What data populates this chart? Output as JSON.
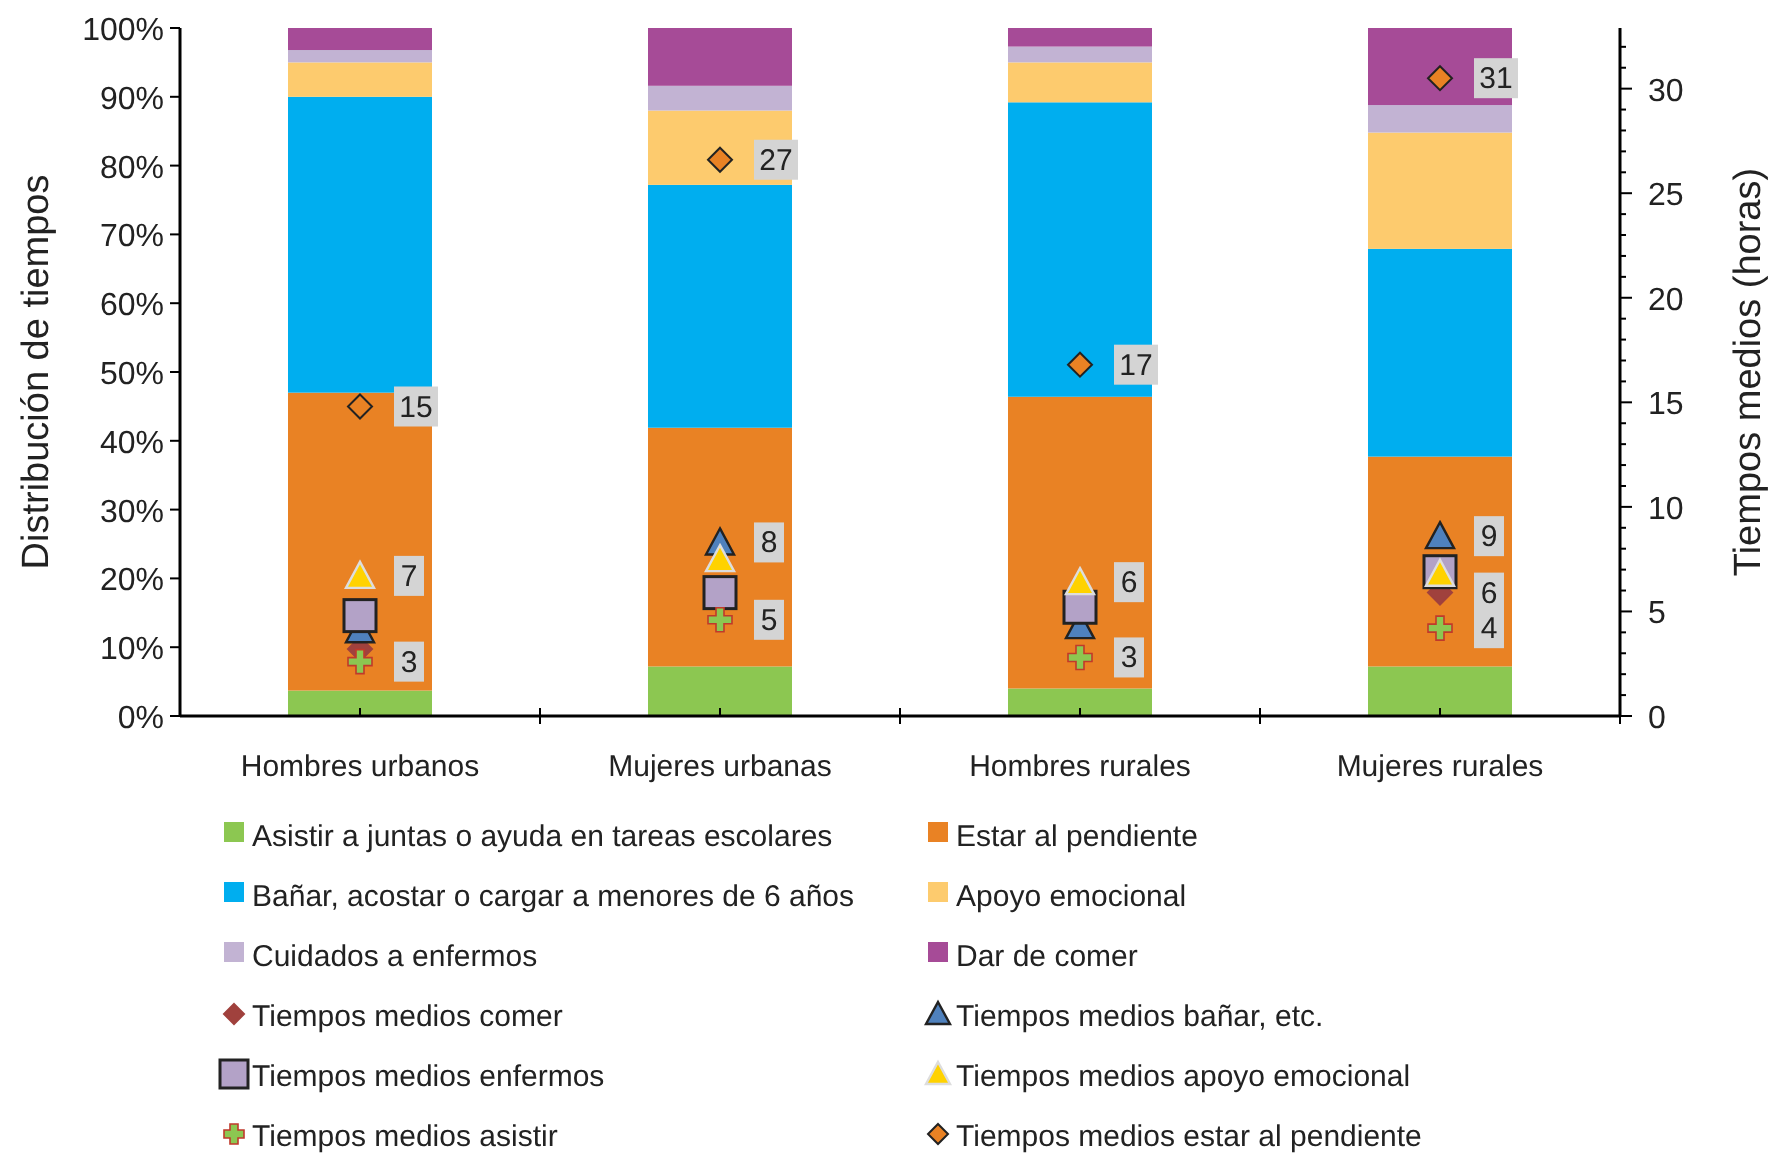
{
  "chart_data": {
    "type": "bar",
    "stacked": true,
    "categories": [
      "Hombres urbanos",
      "Mujeres urbanas",
      "Hombres rurales",
      "Mujeres rurales"
    ],
    "ylabel": "Distribución de tiempos",
    "y2label": "Tiempos medios (horas)",
    "ylim": [
      0,
      100
    ],
    "yticks": [
      {
        "value": 0,
        "label": "0%"
      },
      {
        "value": 10,
        "label": "10%"
      },
      {
        "value": 20,
        "label": "20%"
      },
      {
        "value": 30,
        "label": "30%"
      },
      {
        "value": 40,
        "label": "40%"
      },
      {
        "value": 50,
        "label": "50%"
      },
      {
        "value": 60,
        "label": "60%"
      },
      {
        "value": 70,
        "label": "70%"
      },
      {
        "value": 80,
        "label": "80%"
      },
      {
        "value": 90,
        "label": "90%"
      },
      {
        "value": 100,
        "label": "100%"
      }
    ],
    "y2lim": [
      0,
      32.9
    ],
    "y2ticks": [
      0,
      {
        "value": 1,
        "label": null
      },
      {
        "value": 2,
        "label": null
      },
      {
        "value": 3,
        "label": null
      },
      {
        "value": 4,
        "label": null
      },
      5,
      {
        "value": 6,
        "label": null
      },
      {
        "value": 7,
        "label": null
      },
      {
        "value": 8,
        "label": null
      },
      {
        "value": 9,
        "label": null
      },
      10,
      {
        "value": 11,
        "label": null
      },
      {
        "value": 12,
        "label": null
      },
      {
        "value": 13,
        "label": null
      },
      {
        "value": 14,
        "label": null
      },
      15,
      {
        "value": 16,
        "label": null
      },
      {
        "value": 17,
        "label": null
      },
      {
        "value": 18,
        "label": null
      },
      {
        "value": 19,
        "label": null
      },
      20,
      {
        "value": 21,
        "label": null
      },
      {
        "value": 22,
        "label": null
      },
      {
        "value": 23,
        "label": null
      },
      {
        "value": 24,
        "label": null
      },
      25,
      {
        "value": 26,
        "label": null
      },
      {
        "value": 27,
        "label": null
      },
      {
        "value": 28,
        "label": null
      },
      {
        "value": 29,
        "label": null
      },
      30,
      {
        "value": 31,
        "label": null
      },
      {
        "value": 32,
        "label": null
      }
    ],
    "legend": "bottom",
    "series": [
      {
        "name": "Asistir a juntas o ayuda en tareas escolares",
        "color": "#8cc751",
        "values": [
          3.7,
          7.2,
          4.0,
          7.2
        ]
      },
      {
        "name": "Estar al pendiente",
        "color": "#e98224",
        "values": [
          43.3,
          34.7,
          42.4,
          30.5
        ]
      },
      {
        "name": "Bañar, acostar o cargar a menores de 6 años",
        "color": "#00aeef",
        "values": [
          43.0,
          35.3,
          42.8,
          30.2
        ]
      },
      {
        "name": "Apoyo emocional",
        "color": "#fdcb6e",
        "values": [
          5.0,
          10.8,
          5.8,
          16.9
        ]
      },
      {
        "name": "Cuidados a enfermos",
        "color": "#c2b3d3",
        "values": [
          1.8,
          3.6,
          2.3,
          4.0
        ]
      },
      {
        "name": "Dar de comer",
        "color": "#a64b97",
        "values": [
          3.2,
          8.4,
          2.7,
          11.2
        ]
      },
      {
        "name": "Tiempos medios comer",
        "type": "scatter",
        "axis": "y2",
        "marker": "diamond",
        "color": "#a0413d",
        "values": [
          3.2,
          null,
          null,
          5.9
        ],
        "value_labels": [
          null,
          null,
          null,
          "6"
        ]
      },
      {
        "name": "Tiempos medios bañar, etc.",
        "type": "scatter",
        "axis": "y2",
        "marker": "triangle",
        "color": "#4f81bd",
        "values": [
          4.1,
          8.3,
          4.3,
          8.6
        ],
        "value_labels": [
          null,
          "8",
          null,
          "9"
        ]
      },
      {
        "name": "Tiempos medios enfermos",
        "type": "scatter",
        "axis": "y2",
        "marker": "square",
        "color": "#b3a2c7",
        "values": [
          4.8,
          5.9,
          5.2,
          6.9
        ]
      },
      {
        "name": "Tiempos medios apoyo emocional",
        "type": "scatter",
        "axis": "y2",
        "marker": "triangle",
        "color": "#ffd200",
        "values": [
          6.7,
          7.5,
          6.4,
          6.8
        ],
        "value_labels": [
          "7",
          null,
          "6",
          null
        ]
      },
      {
        "name": "Tiempos medios asistir",
        "type": "scatter",
        "axis": "y2",
        "marker": "cross",
        "color": "#8cc751",
        "values": [
          2.6,
          4.6,
          2.8,
          4.2
        ],
        "value_labels": [
          "3",
          "5",
          "3",
          "4"
        ]
      },
      {
        "name": "Tiempos medios estar al pendiente",
        "type": "scatter",
        "axis": "y2",
        "marker": "diamond",
        "color": "#e98224",
        "values": [
          14.8,
          26.6,
          16.8,
          30.5
        ],
        "value_labels": [
          "15",
          "27",
          "17",
          "31"
        ]
      }
    ]
  }
}
